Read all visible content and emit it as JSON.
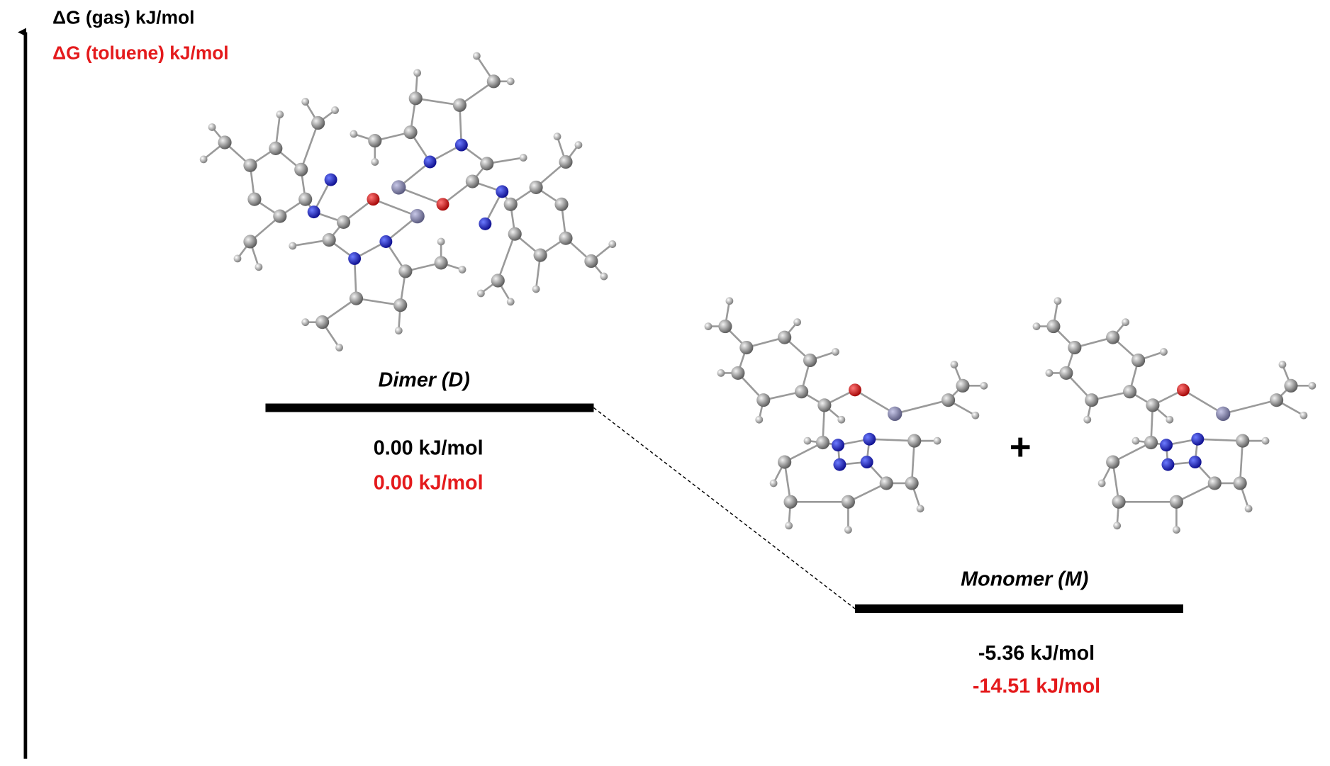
{
  "legend": {
    "gas": "ΔG (gas) kJ/mol",
    "toluene": "ΔG (toluene) kJ/mol"
  },
  "levels": [
    {
      "name": "Dimer (D)",
      "gas": "0.00 kJ/mol",
      "toluene": "0.00 kJ/mol"
    },
    {
      "name": "Monomer (M)",
      "gas": "-5.36 kJ/mol",
      "toluene": "-14.51 kJ/mol"
    }
  ],
  "plus": "+"
}
